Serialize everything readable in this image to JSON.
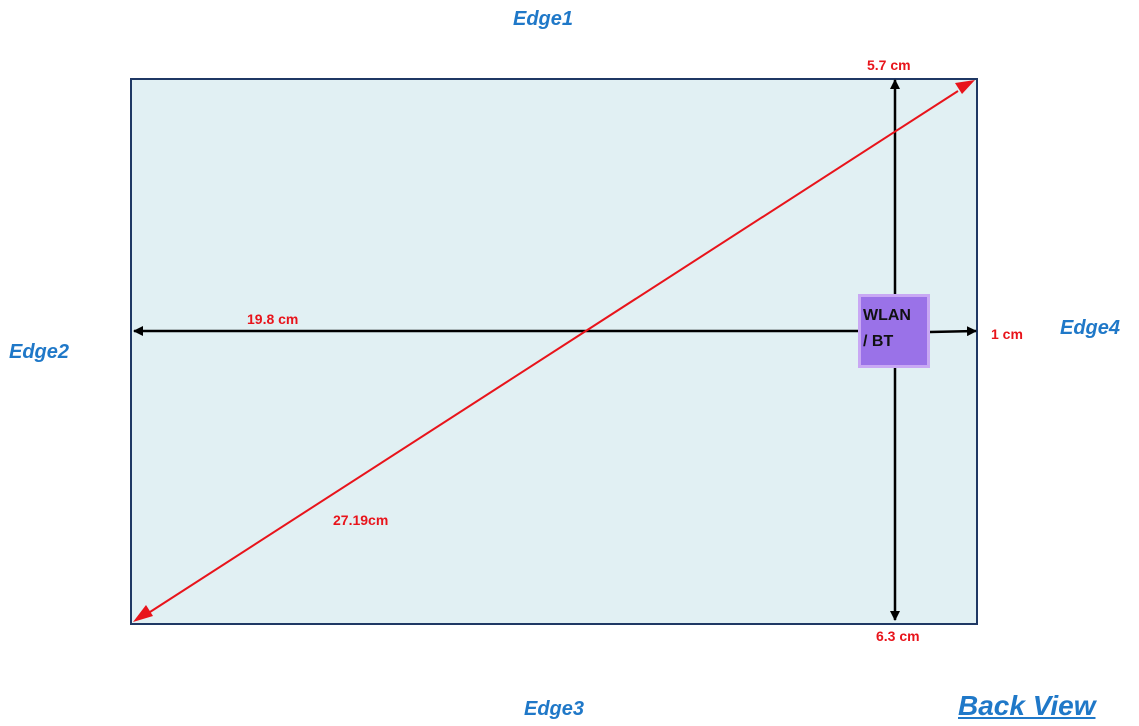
{
  "edges": {
    "edge1": "Edge1",
    "edge2": "Edge2",
    "edge3": "Edge3",
    "edge4": "Edge4"
  },
  "view_title": "Back View",
  "module": {
    "line1": "WLAN",
    "line2": "/ BT"
  },
  "measurements": {
    "to_edge1": "5.7 cm",
    "to_edge2": "19.8 cm",
    "to_edge3": "6.3 cm",
    "to_edge4": "1 cm",
    "diagonal": "27.19cm"
  },
  "colors": {
    "panel_fill": "#e1f0f3",
    "panel_border": "#1f3864",
    "label_blue": "#1f78c8",
    "measure_red": "#e8141b",
    "module_fill": "#9a72e8",
    "module_border": "#c9a8f4",
    "arrow_black": "#000000"
  }
}
